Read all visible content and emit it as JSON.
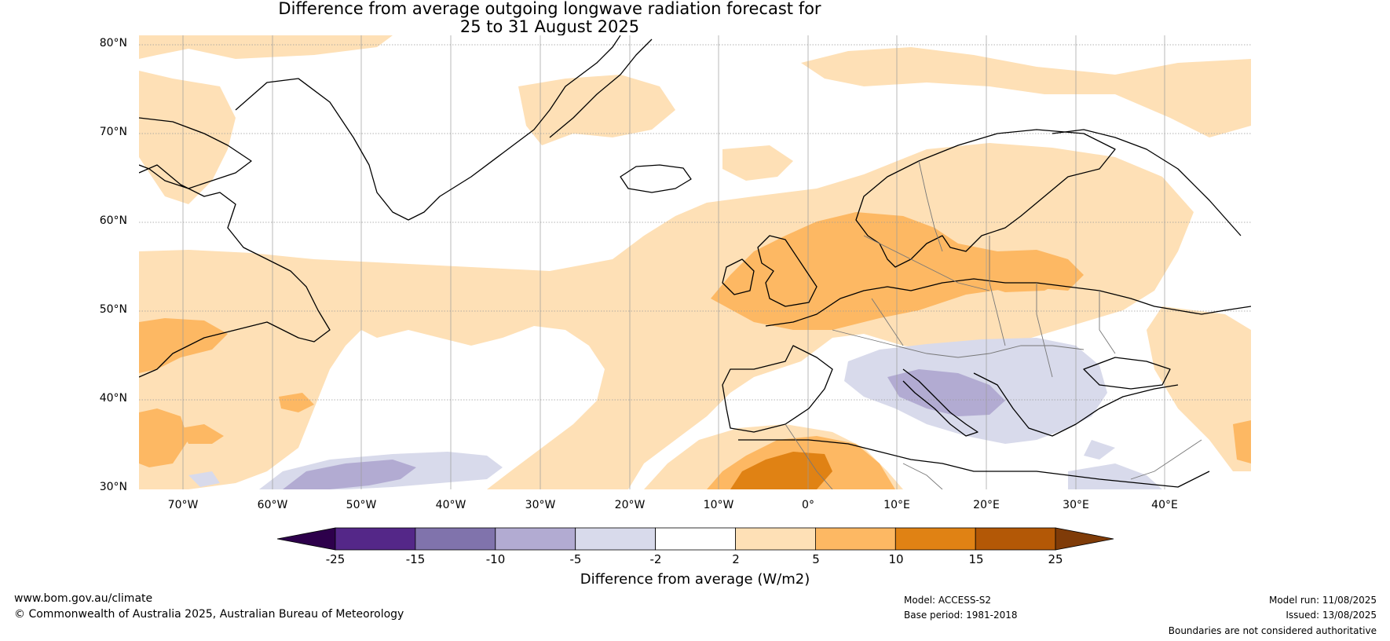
{
  "title": {
    "line1": "Difference from average outgoing longwave radiation forecast for",
    "line2": "25 to 31 August 2025"
  },
  "map": {
    "lat_labels": [
      "80°N",
      "70°N",
      "60°N",
      "50°N",
      "40°N",
      "30°N"
    ],
    "lon_labels": [
      "70°W",
      "60°W",
      "50°W",
      "40°W",
      "30°W",
      "20°W",
      "10°W",
      "0°",
      "10°E",
      "20°E",
      "30°E",
      "40°E"
    ]
  },
  "colorbar": {
    "title": "Difference from average (W/m2)",
    "tick_labels": [
      "-25",
      "-15",
      "-10",
      "-5",
      "-2",
      "2",
      "5",
      "10",
      "15",
      "25"
    ],
    "bins": [
      {
        "from": "-25",
        "to": "-15",
        "color": "#542788"
      },
      {
        "from": "-15",
        "to": "-10",
        "color": "#8073ac"
      },
      {
        "from": "-10",
        "to": "-5",
        "color": "#b2abd2"
      },
      {
        "from": "-5",
        "to": "-2",
        "color": "#d8daeb"
      },
      {
        "from": "-2",
        "to": "2",
        "color": "#ffffff"
      },
      {
        "from": "2",
        "to": "5",
        "color": "#fee0b6"
      },
      {
        "from": "5",
        "to": "10",
        "color": "#fdb863"
      },
      {
        "from": "10",
        "to": "15",
        "color": "#e08214"
      },
      {
        "from": "15",
        "to": "25",
        "color": "#b35806"
      }
    ],
    "under_color": "#2d004b",
    "over_color": "#7f3b08"
  },
  "footer": {
    "website": "www.bom.gov.au/climate",
    "copyright": "© Commonwealth of Australia 2025, Australian Bureau of Meteorology",
    "model": "Model: ACCESS-S2",
    "base_period": "Base period: 1981-2018",
    "model_run": "Model run: 11/08/2025",
    "issued": "Issued: 13/08/2025",
    "disclaimer": "Boundaries are not considered authoritative"
  }
}
